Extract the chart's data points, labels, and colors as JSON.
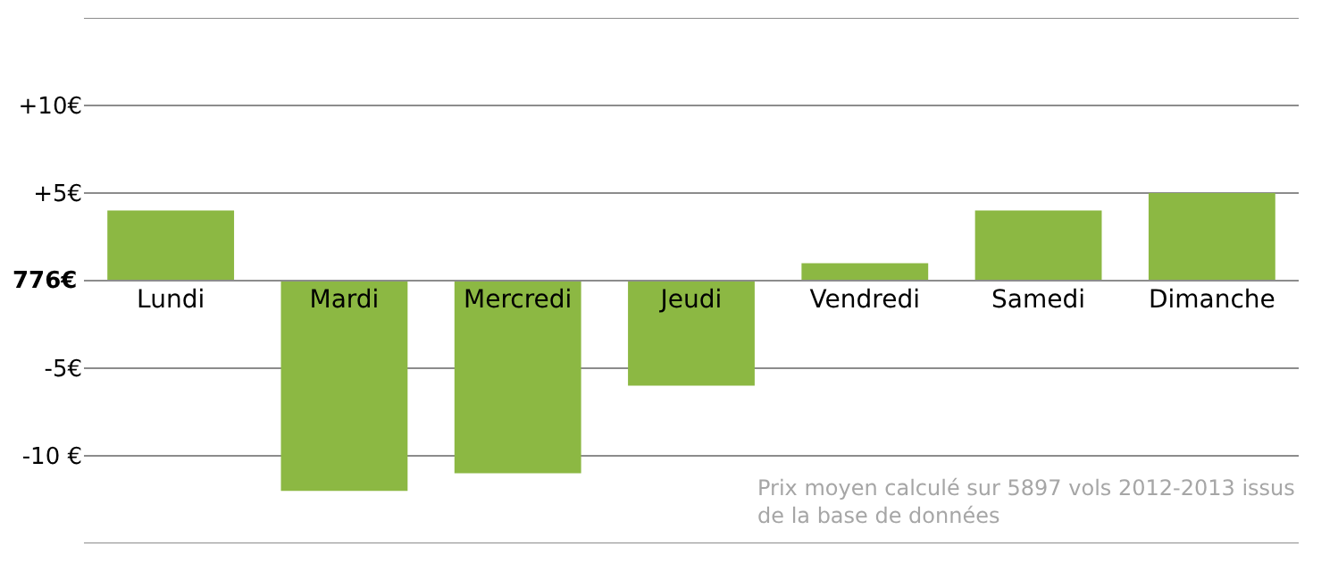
{
  "chart_data": {
    "type": "bar",
    "categories": [
      "Lundi",
      "Mardi",
      "Mercredi",
      "Jeudi",
      "Vendredi",
      "Samedi",
      "Dimanche"
    ],
    "values": [
      4,
      -12,
      -11,
      -6,
      1,
      4,
      5
    ],
    "color": "#8cb843",
    "ylim": [
      -15,
      15
    ],
    "yticks": [
      {
        "value": -15,
        "label": null
      },
      {
        "value": -10,
        "label": "-10 €"
      },
      {
        "value": -5,
        "label": "-5€"
      },
      {
        "value": 5,
        "label": "+5€"
      },
      {
        "value": 10,
        "label": "+10€"
      },
      {
        "value": 15,
        "label": null
      }
    ],
    "grid": "y",
    "ref_lines": [
      {
        "axis": "y",
        "value": 0,
        "label": "776€",
        "color": "#8c8c8c"
      }
    ],
    "annotations": [
      "Prix moyen calculé sur 5897 vols 2012-2013 issus de la base de données"
    ]
  }
}
